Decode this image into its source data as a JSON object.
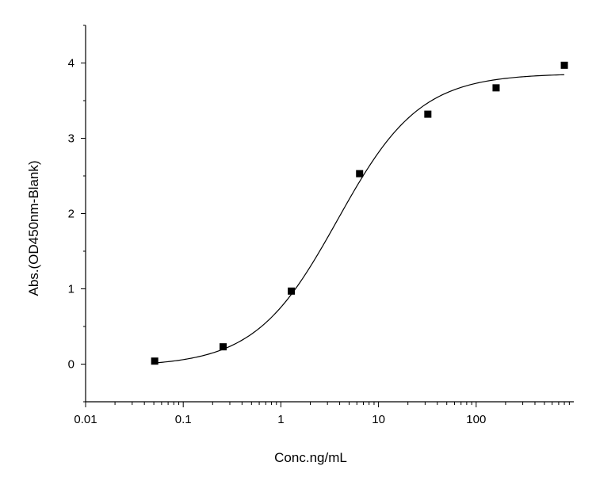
{
  "chart_data": {
    "type": "scatter",
    "title": "",
    "xlabel": "Conc.ng/mL",
    "ylabel": "Abs.(OD450nm-Blank)",
    "x_scale": "log",
    "xlim": [
      0.01,
      1000
    ],
    "ylim": [
      -0.5,
      4.5
    ],
    "x_ticks": [
      {
        "value": 0.01,
        "label": "0.01"
      },
      {
        "value": 0.1,
        "label": "0.1"
      },
      {
        "value": 1,
        "label": "1"
      },
      {
        "value": 10,
        "label": "10"
      },
      {
        "value": 100,
        "label": "100"
      }
    ],
    "y_ticks": [
      {
        "value": 0,
        "label": "0"
      },
      {
        "value": 1,
        "label": "1"
      },
      {
        "value": 2,
        "label": "2"
      },
      {
        "value": 3,
        "label": "3"
      },
      {
        "value": 4,
        "label": "4"
      }
    ],
    "grid": false,
    "legend": "none",
    "marker": "square",
    "colors": {
      "points": "#000000",
      "curve": "#000000",
      "axes": "#000000"
    },
    "series": [
      {
        "points": [
          {
            "x": 0.051,
            "y": 0.04
          },
          {
            "x": 0.256,
            "y": 0.23
          },
          {
            "x": 1.28,
            "y": 0.97
          },
          {
            "x": 6.4,
            "y": 2.53
          },
          {
            "x": 32,
            "y": 3.32
          },
          {
            "x": 160,
            "y": 3.67
          },
          {
            "x": 800,
            "y": 3.97
          }
        ]
      }
    ],
    "fit_curve": {
      "model": "4PL",
      "bottom": -0.03,
      "top": 3.86,
      "ec50": 3.8,
      "hill": 1.03,
      "x_range": [
        0.051,
        800
      ]
    }
  }
}
